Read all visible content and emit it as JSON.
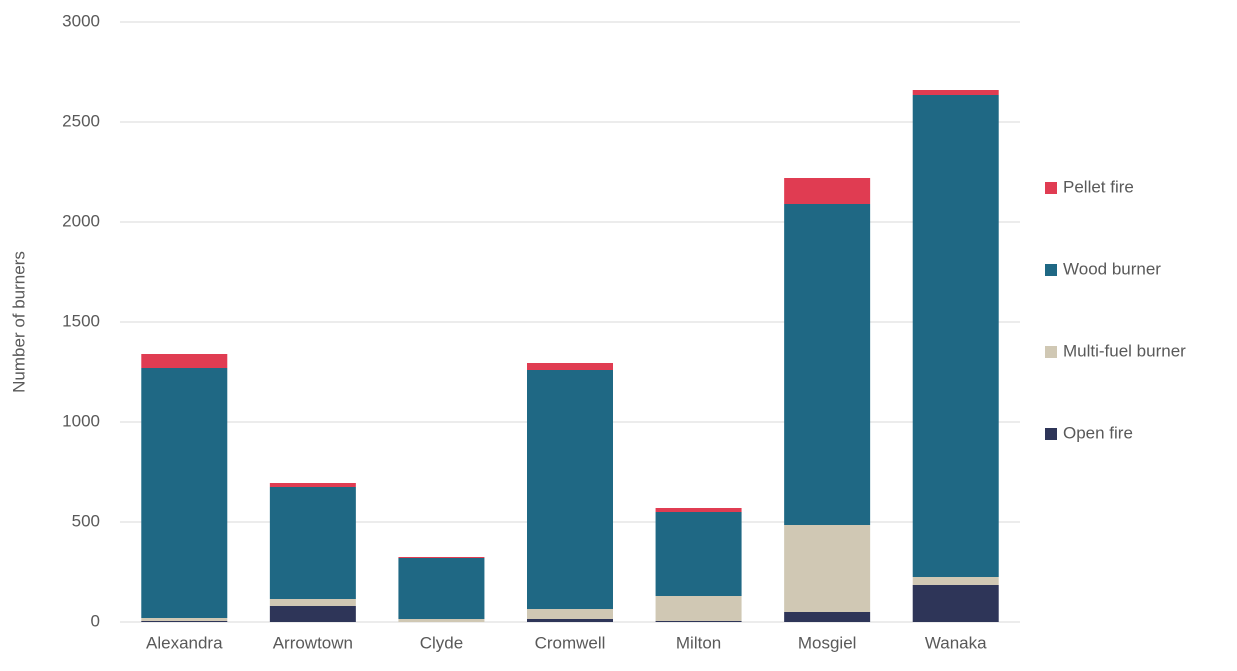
{
  "chart_data": {
    "type": "stacked-bar",
    "y_axis_label": "Number of burners",
    "categories": [
      "Alexandra",
      "Arrowtown",
      "Clyde",
      "Cromwell",
      "Milton",
      "Mosgiel",
      "Wanaka"
    ],
    "series": [
      {
        "name": "Open fire",
        "color": "#2e3558",
        "values": [
          5,
          80,
          0,
          15,
          5,
          50,
          185
        ]
      },
      {
        "name": "Multi-fuel burner",
        "color": "#d0c8b4",
        "values": [
          15,
          35,
          15,
          50,
          125,
          435,
          40
        ]
      },
      {
        "name": "Wood burner",
        "color": "#1f6884",
        "values": [
          1250,
          560,
          305,
          1195,
          420,
          1605,
          2410
        ]
      },
      {
        "name": "Pellet fire",
        "color": "#e03c52",
        "values": [
          70,
          20,
          5,
          35,
          20,
          130,
          25
        ]
      }
    ],
    "ylim": [
      0,
      3000
    ],
    "yticks": [
      0,
      500,
      1000,
      1500,
      2000,
      2500,
      3000
    ],
    "grid": true,
    "legend": "right"
  }
}
